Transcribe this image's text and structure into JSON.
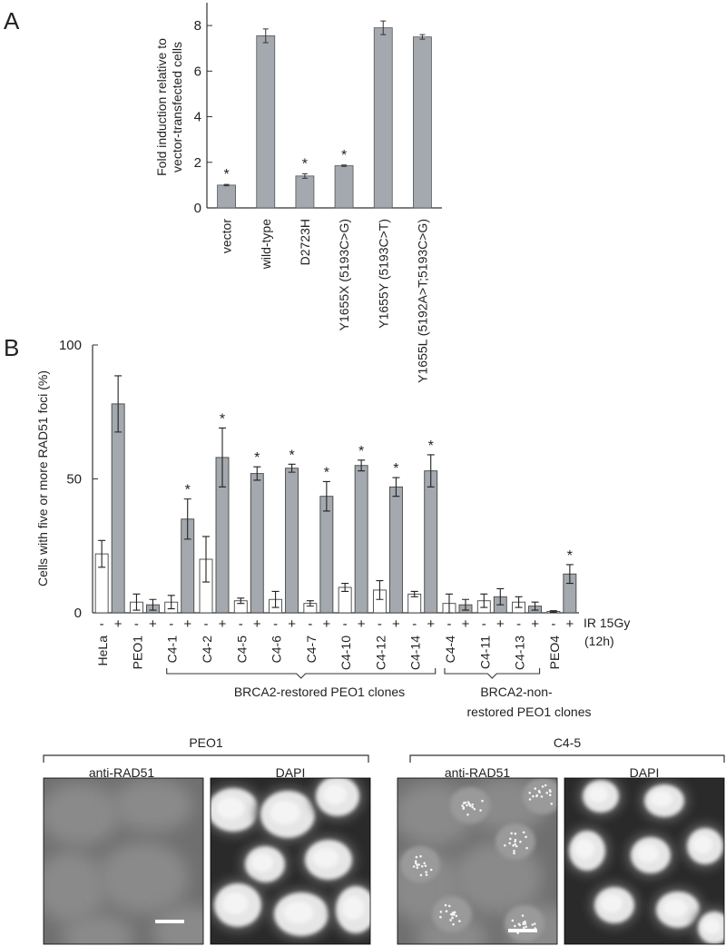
{
  "panel_labels": [
    "A",
    "B"
  ],
  "chart_data": [
    {
      "type": "bar",
      "panel": "A",
      "ylabel": "Fold induction relative to vector-transfected cells",
      "ylabel_lines": [
        "Fold induction relative to",
        "vector-transfected cells"
      ],
      "ylim": [
        0,
        9
      ],
      "yticks": [
        0,
        2,
        4,
        6,
        8
      ],
      "categories": [
        "vector",
        "wild-type",
        "D2723H",
        "Y1655X (5193C>G)",
        "Y1655Y (5193C>T)",
        "Y1655L (5192A>T;5193C>G)"
      ],
      "values": [
        1.0,
        7.55,
        1.4,
        1.85,
        7.9,
        7.5
      ],
      "errors": [
        0.03,
        0.3,
        0.1,
        0.03,
        0.3,
        0.1
      ],
      "significant": [
        true,
        false,
        true,
        true,
        false,
        false
      ],
      "significance_marker": "*",
      "bar_color": "#a3a9ae"
    },
    {
      "type": "bar",
      "panel": "B",
      "ylabel": "Cells with five or more RAD51 foci (%)",
      "ylim": [
        0,
        100
      ],
      "yticks": [
        0,
        50,
        100
      ],
      "categories": [
        "HeLa",
        "PEO1",
        "C4-1",
        "C4-2",
        "C4-5",
        "C4-6",
        "C4-7",
        "C4-10",
        "C4-12",
        "C4-14",
        "C4-4",
        "C4-11",
        "C4-13",
        "PEO4"
      ],
      "treatment_signs": [
        "-",
        "+"
      ],
      "treatment_label": "IR 15Gy",
      "treatment_sublabel": "(12h)",
      "series": [
        {
          "name": "-",
          "fill": "#ffffff",
          "values": [
            22,
            4,
            4,
            20,
            4.5,
            5,
            3.5,
            9.5,
            8.5,
            7,
            3.5,
            4.5,
            4,
            0.5
          ],
          "errors": [
            5,
            3,
            2.5,
            8.5,
            1,
            3,
            1,
            1.5,
            3.5,
            1,
            3.5,
            2.5,
            2,
            0.3
          ]
        },
        {
          "name": "+",
          "fill": "#a3a9ae",
          "values": [
            78,
            3,
            35,
            58,
            52,
            54,
            43.5,
            55,
            47,
            53,
            3,
            6,
            2.5,
            14.5
          ],
          "errors": [
            10.5,
            2,
            7.5,
            11,
            2.5,
            1.5,
            5.5,
            2,
            3.5,
            6,
            2,
            3,
            1.5,
            3.5
          ]
        }
      ],
      "significant_plus": [
        false,
        false,
        true,
        true,
        true,
        true,
        true,
        true,
        true,
        true,
        false,
        false,
        false,
        true
      ],
      "significance_marker": "*",
      "groups": [
        {
          "label": "BRCA2-restored PEO1 clones",
          "lines": [
            "BRCA2-restored PEO1 clones"
          ],
          "from": "C4-1",
          "to": "C4-14"
        },
        {
          "label": "BRCA2-non-restored PEO1 clones",
          "lines": [
            "BRCA2-non-",
            "restored PEO1 clones"
          ],
          "from": "C4-4",
          "to": "C4-13"
        }
      ]
    }
  ],
  "micrographs": {
    "groups": [
      {
        "label": "PEO1",
        "images": [
          {
            "label": "anti-RAD51",
            "kind": "rad51-diffuse"
          },
          {
            "label": "DAPI",
            "kind": "dapi"
          }
        ]
      },
      {
        "label": "C4-5",
        "images": [
          {
            "label": "anti-RAD51",
            "kind": "rad51-foci"
          },
          {
            "label": "DAPI",
            "kind": "dapi"
          }
        ]
      }
    ]
  }
}
